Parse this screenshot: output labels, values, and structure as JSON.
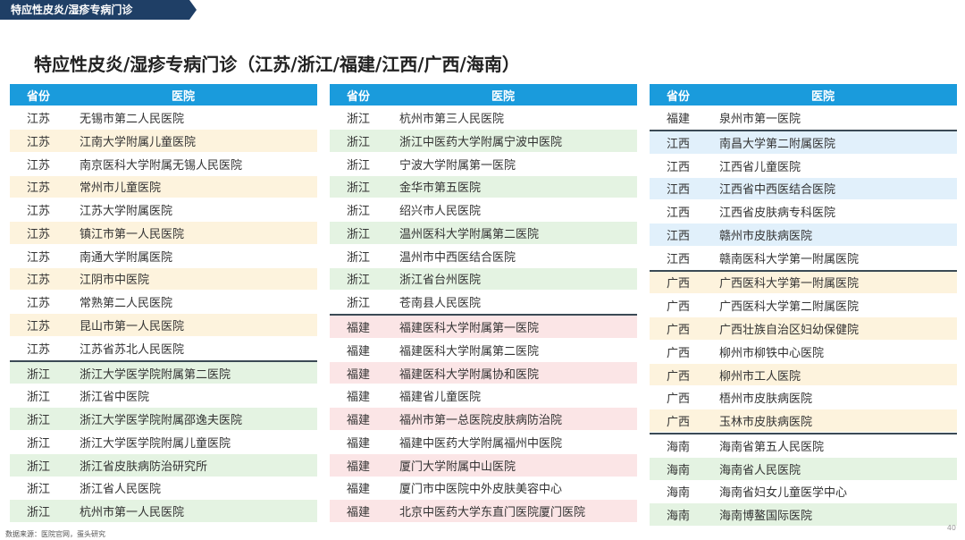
{
  "banner": "特应性皮炎/湿疹专病门诊",
  "title": "特应性皮炎/湿疹专病门诊（江苏/浙江/福建/江西/广西/海南）",
  "header": {
    "province": "省份",
    "hospital": "医院"
  },
  "colors": {
    "header_bg": "#1a9bdc",
    "jiangsu": "#fdf3dd",
    "zhejiang": "#e4f3e2",
    "fujian": "#fbe5e6",
    "jiangxi": "#e1f0fb",
    "guangxi": "#fdf3dd",
    "hainan": "#e4f3e2"
  },
  "tables": [
    {
      "rows": [
        {
          "province": "江苏",
          "hospital": "无锡市第二人民医院",
          "shade": false
        },
        {
          "province": "江苏",
          "hospital": "江南大学附属儿童医院",
          "shade": true
        },
        {
          "province": "江苏",
          "hospital": "南京医科大学附属无锡人民医院",
          "shade": false
        },
        {
          "province": "江苏",
          "hospital": "常州市儿童医院",
          "shade": true
        },
        {
          "province": "江苏",
          "hospital": "江苏大学附属医院",
          "shade": false
        },
        {
          "province": "江苏",
          "hospital": "镇江市第一人民医院",
          "shade": true
        },
        {
          "province": "江苏",
          "hospital": "南通大学附属医院",
          "shade": false
        },
        {
          "province": "江苏",
          "hospital": "江阴市中医院",
          "shade": true
        },
        {
          "province": "江苏",
          "hospital": "常熟第二人民医院",
          "shade": false
        },
        {
          "province": "江苏",
          "hospital": "昆山市第一人民医院",
          "shade": true
        },
        {
          "province": "江苏",
          "hospital": "江苏省苏北人民医院",
          "shade": false
        },
        {
          "province": "浙江",
          "hospital": "浙江大学医学院附属第二医院",
          "shade": true,
          "sep": true
        },
        {
          "province": "浙江",
          "hospital": "浙江省中医院",
          "shade": false
        },
        {
          "province": "浙江",
          "hospital": "浙江大学医学院附属邵逸夫医院",
          "shade": true
        },
        {
          "province": "浙江",
          "hospital": "浙江大学医学院附属儿童医院",
          "shade": false
        },
        {
          "province": "浙江",
          "hospital": "浙江省皮肤病防治研究所",
          "shade": true
        },
        {
          "province": "浙江",
          "hospital": "浙江省人民医院",
          "shade": false
        },
        {
          "province": "浙江",
          "hospital": "杭州市第一人民医院",
          "shade": true
        }
      ]
    },
    {
      "rows": [
        {
          "province": "浙江",
          "hospital": "杭州市第三人民医院",
          "shade": false
        },
        {
          "province": "浙江",
          "hospital": "浙江中医药大学附属宁波中医院",
          "shade": true
        },
        {
          "province": "浙江",
          "hospital": "宁波大学附属第一医院",
          "shade": false
        },
        {
          "province": "浙江",
          "hospital": "金华市第五医院",
          "shade": true
        },
        {
          "province": "浙江",
          "hospital": "绍兴市人民医院",
          "shade": false
        },
        {
          "province": "浙江",
          "hospital": "温州医科大学附属第二医院",
          "shade": true
        },
        {
          "province": "浙江",
          "hospital": "温州市中西医结合医院",
          "shade": false
        },
        {
          "province": "浙江",
          "hospital": "浙江省台州医院",
          "shade": true
        },
        {
          "province": "浙江",
          "hospital": "苍南县人民医院",
          "shade": false
        },
        {
          "province": "福建",
          "hospital": "福建医科大学附属第一医院",
          "shade": true,
          "sep": true
        },
        {
          "province": "福建",
          "hospital": "福建医科大学附属第二医院",
          "shade": false
        },
        {
          "province": "福建",
          "hospital": "福建医科大学附属协和医院",
          "shade": true
        },
        {
          "province": "福建",
          "hospital": "福建省儿童医院",
          "shade": false
        },
        {
          "province": "福建",
          "hospital": "福州市第一总医院皮肤病防治院",
          "shade": true
        },
        {
          "province": "福建",
          "hospital": "福建中医药大学附属福州中医院",
          "shade": false
        },
        {
          "province": "福建",
          "hospital": "厦门大学附属中山医院",
          "shade": true
        },
        {
          "province": "福建",
          "hospital": "厦门市中医院中外皮肤美容中心",
          "shade": false
        },
        {
          "province": "福建",
          "hospital": "北京中医药大学东直门医院厦门医院",
          "shade": true
        }
      ]
    },
    {
      "rows": [
        {
          "province": "福建",
          "hospital": "泉州市第一医院",
          "shade": false
        },
        {
          "province": "江西",
          "hospital": "南昌大学第二附属医院",
          "shade": true,
          "sep": true
        },
        {
          "province": "江西",
          "hospital": "江西省儿童医院",
          "shade": false
        },
        {
          "province": "江西",
          "hospital": "江西省中西医结合医院",
          "shade": true
        },
        {
          "province": "江西",
          "hospital": "江西省皮肤病专科医院",
          "shade": false
        },
        {
          "province": "江西",
          "hospital": "赣州市皮肤病医院",
          "shade": true
        },
        {
          "province": "江西",
          "hospital": "赣南医科大学第一附属医院",
          "shade": false
        },
        {
          "province": "广西",
          "hospital": "广西医科大学第一附属医院",
          "shade": true,
          "sep": true
        },
        {
          "province": "广西",
          "hospital": "广西医科大学第二附属医院",
          "shade": false
        },
        {
          "province": "广西",
          "hospital": "广西壮族自治区妇幼保健院",
          "shade": true
        },
        {
          "province": "广西",
          "hospital": "柳州市柳铁中心医院",
          "shade": false
        },
        {
          "province": "广西",
          "hospital": "柳州市工人医院",
          "shade": true
        },
        {
          "province": "广西",
          "hospital": "梧州市皮肤病医院",
          "shade": false
        },
        {
          "province": "广西",
          "hospital": "玉林市皮肤病医院",
          "shade": true
        },
        {
          "province": "海南",
          "hospital": "海南省第五人民医院",
          "shade": false,
          "sep": true
        },
        {
          "province": "海南",
          "hospital": "海南省人民医院",
          "shade": true
        },
        {
          "province": "海南",
          "hospital": "海南省妇女儿童医学中心",
          "shade": false
        },
        {
          "province": "海南",
          "hospital": "海南博鳌国际医院",
          "shade": true
        }
      ]
    }
  ],
  "footer": "数据来源：医院官网，蛋头研究",
  "page_number": "40"
}
